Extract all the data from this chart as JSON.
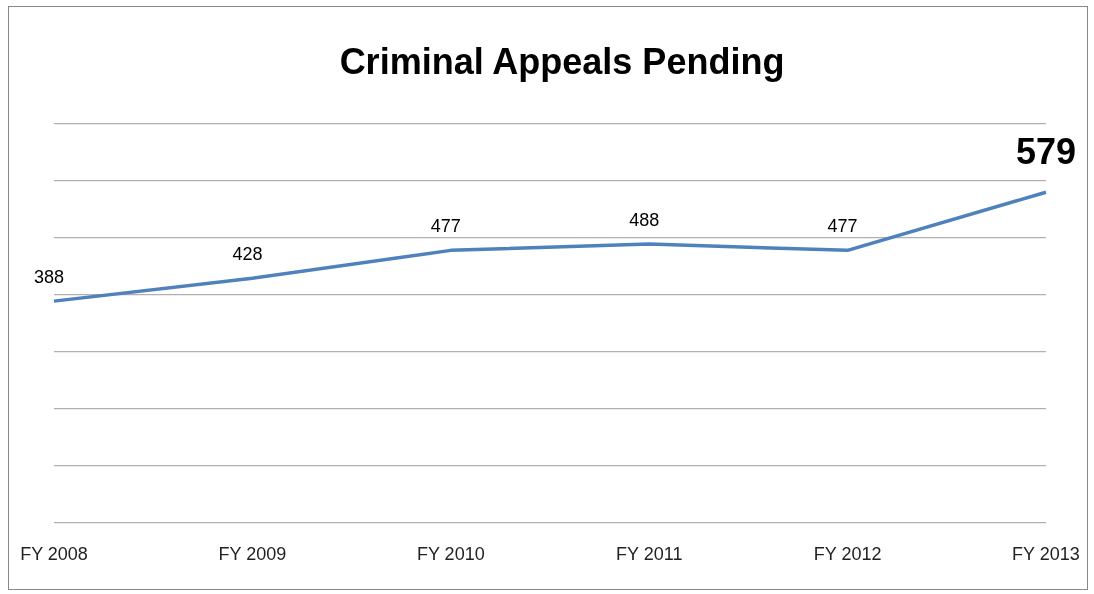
{
  "chart_data": {
    "type": "line",
    "title": "Criminal Appeals Pending",
    "categories": [
      "FY 2008",
      "FY 2009",
      "FY 2010",
      "FY 2011",
      "FY 2012",
      "FY 2013"
    ],
    "values": [
      388,
      428,
      477,
      488,
      477,
      579
    ],
    "color": "#4f81bd",
    "ylim": [
      0,
      700
    ],
    "yticks": [
      {
        "value": 0,
        "label": null
      },
      {
        "value": 100,
        "label": null
      },
      {
        "value": 200,
        "label": null
      },
      {
        "value": 300,
        "label": null
      },
      {
        "value": 400,
        "label": null
      },
      {
        "value": 500,
        "label": null
      },
      {
        "value": 600,
        "label": null
      },
      {
        "value": 700,
        "label": null
      }
    ],
    "tick_labels": "x",
    "grid": "y",
    "legend": false,
    "marker": "none",
    "line_style": "solid",
    "data_labels": true
  }
}
